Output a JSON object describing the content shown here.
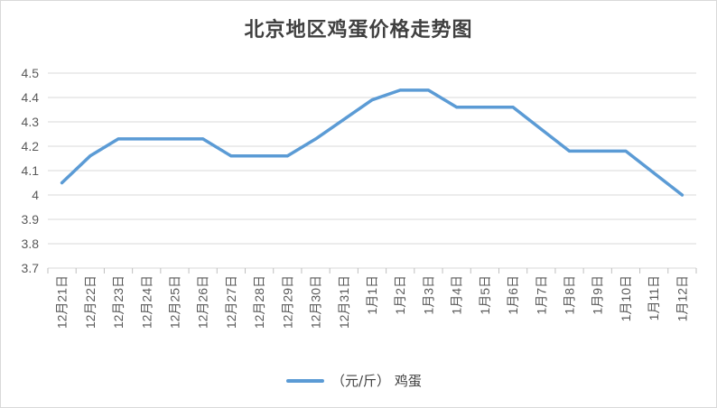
{
  "chart_data": {
    "type": "line",
    "title": "北京地区鸡蛋价格走势图",
    "xlabel": "",
    "ylabel": "",
    "ylim": [
      3.7,
      4.5
    ],
    "yticks": [
      "3.7",
      "3.8",
      "3.9",
      "4",
      "4.1",
      "4.2",
      "4.3",
      "4.4",
      "4.5"
    ],
    "grid": true,
    "legend_position": "bottom",
    "categories": [
      "12月21日",
      "12月22日",
      "12月23日",
      "12月24日",
      "12月25日",
      "12月26日",
      "12月27日",
      "12月28日",
      "12月29日",
      "12月30日",
      "12月31日",
      "1月1日",
      "1月2日",
      "1月3日",
      "1月4日",
      "1月5日",
      "1月6日",
      "1月7日",
      "1月8日",
      "1月9日",
      "1月10日",
      "1月11日",
      "1月12日"
    ],
    "series": [
      {
        "name": "（元/斤） 鸡蛋",
        "color": "#5b9bd5",
        "values": [
          4.05,
          4.16,
          4.23,
          4.23,
          4.23,
          4.23,
          4.16,
          4.16,
          4.16,
          4.23,
          4.31,
          4.39,
          4.43,
          4.43,
          4.36,
          4.36,
          4.36,
          4.27,
          4.18,
          4.18,
          4.18,
          4.09,
          4.0
        ]
      }
    ]
  }
}
